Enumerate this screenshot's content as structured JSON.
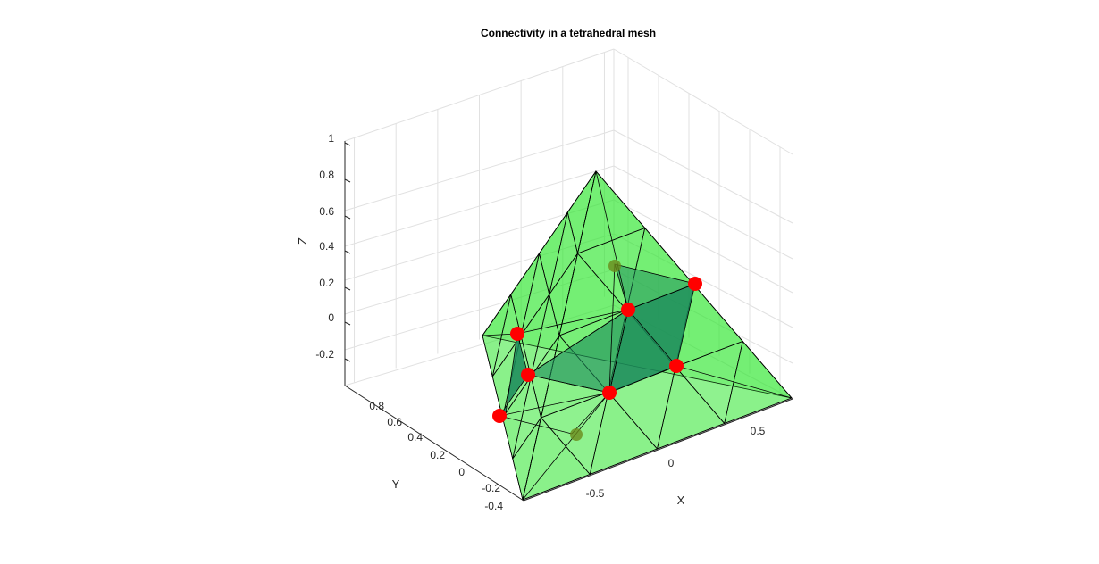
{
  "chart_data": {
    "type": "3d-mesh",
    "title": "Connectivity in a tetrahedral mesh",
    "xlabel": "X",
    "ylabel": "Y",
    "zlabel": "Z",
    "xticks": [
      "-0.5",
      "0",
      "0.5"
    ],
    "yticks": [
      "-0.4",
      "-0.2",
      "0",
      "0.2",
      "0.4",
      "0.6",
      "0.8"
    ],
    "zticks": [
      "-0.2",
      "0",
      "0.2",
      "0.4",
      "0.6",
      "0.8",
      "1"
    ],
    "grid": true,
    "colors": {
      "mesh_face": "#33e633",
      "selected_face": "#1a8a5a",
      "edge": "#000000",
      "vertex_marker": "#ff0000",
      "grid": "#e1e1e1",
      "axis": "#262626"
    },
    "highlighted_vertices_count_visible": 8
  }
}
